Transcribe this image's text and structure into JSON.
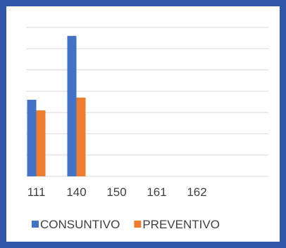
{
  "chart_data": {
    "type": "bar",
    "categories": [
      "111",
      "140",
      "150",
      "161",
      "162"
    ],
    "series": [
      {
        "name": "CONSUNTIVO",
        "color": "#4472c4",
        "values": [
          3.6,
          6.6,
          null,
          null,
          null
        ]
      },
      {
        "name": "PREVENTIVO",
        "color": "#ed7d31",
        "values": [
          3.1,
          3.7,
          null,
          null,
          null
        ]
      }
    ],
    "ylim": [
      0,
      7
    ],
    "grid": true,
    "legend_position": "bottom"
  }
}
